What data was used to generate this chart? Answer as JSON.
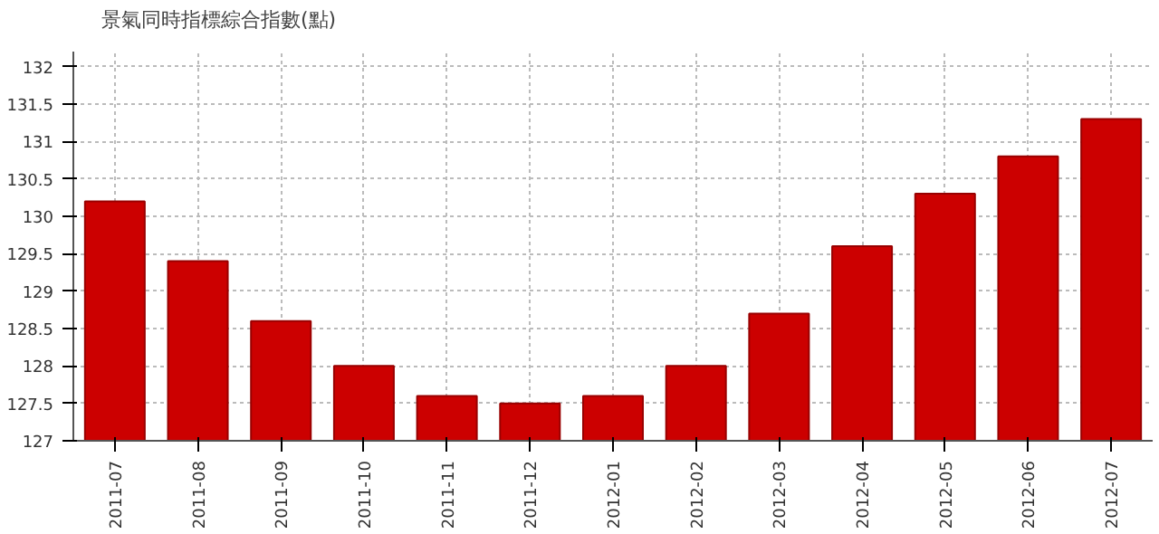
{
  "chart_data": {
    "type": "bar",
    "categories": [
      "2011-07",
      "2011-08",
      "2011-09",
      "2011-10",
      "2011-11",
      "2011-12",
      "2012-01",
      "2012-02",
      "2012-03",
      "2012-04",
      "2012-05",
      "2012-06",
      "2012-07"
    ],
    "series": [
      {
        "name": "景氣同時指標綜合指數(點)",
        "color": "#cc0000",
        "values": [
          130.2,
          129.4,
          128.6,
          128.0,
          127.6,
          127.5,
          127.6,
          128.0,
          128.7,
          129.6,
          130.3,
          130.8,
          131.3
        ]
      }
    ],
    "ylim": [
      127,
      132.2
    ],
    "yticks": [
      127,
      127.5,
      128,
      128.5,
      129,
      129.5,
      130,
      130.5,
      131,
      131.5,
      132
    ],
    "grid": true,
    "legend": "top left"
  }
}
